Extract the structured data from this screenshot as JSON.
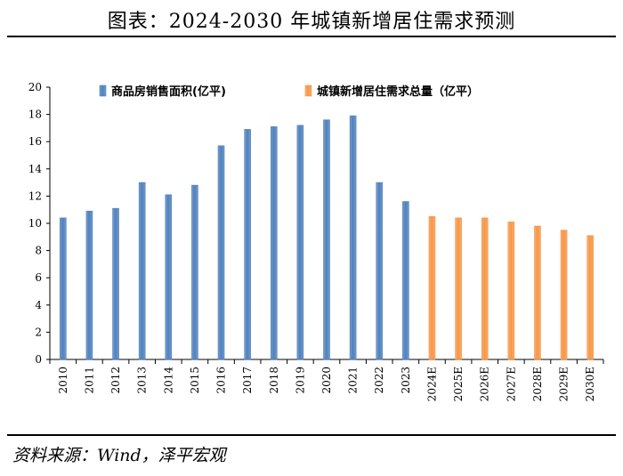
{
  "header": {
    "title": "图表：2024-2030 年城镇新增居住需求预测"
  },
  "footer": {
    "source": "资料来源：Wind，泽平宏观"
  },
  "colors": {
    "actual": "#4F81BD",
    "forecast": "#F79646",
    "axis": "#000000"
  },
  "chart_data": {
    "type": "bar",
    "title": "",
    "xlabel": "",
    "ylabel": "",
    "ylim": [
      0,
      20
    ],
    "yticks": [
      0,
      2,
      4,
      6,
      8,
      10,
      12,
      14,
      16,
      18,
      20
    ],
    "categories": [
      "2010",
      "2011",
      "2012",
      "2013",
      "2014",
      "2015",
      "2016",
      "2017",
      "2018",
      "2019",
      "2020",
      "2021",
      "2022",
      "2023",
      "2024E",
      "2025E",
      "2026E",
      "2027E",
      "2028E",
      "2029E",
      "2030E"
    ],
    "series": [
      {
        "name": "商品房销售面积(亿平)",
        "color": "#4F81BD",
        "values": [
          10.4,
          10.9,
          11.1,
          13.0,
          12.1,
          12.8,
          15.7,
          16.9,
          17.1,
          17.2,
          17.6,
          17.9,
          13.0,
          11.6,
          null,
          null,
          null,
          null,
          null,
          null,
          null
        ]
      },
      {
        "name": "城镇新增居住需求总量（亿平）",
        "color": "#F79646",
        "values": [
          null,
          null,
          null,
          null,
          null,
          null,
          null,
          null,
          null,
          null,
          null,
          null,
          null,
          null,
          10.5,
          10.4,
          10.4,
          10.1,
          9.8,
          9.5,
          9.1
        ]
      }
    ],
    "legend": "top",
    "grid": false
  }
}
